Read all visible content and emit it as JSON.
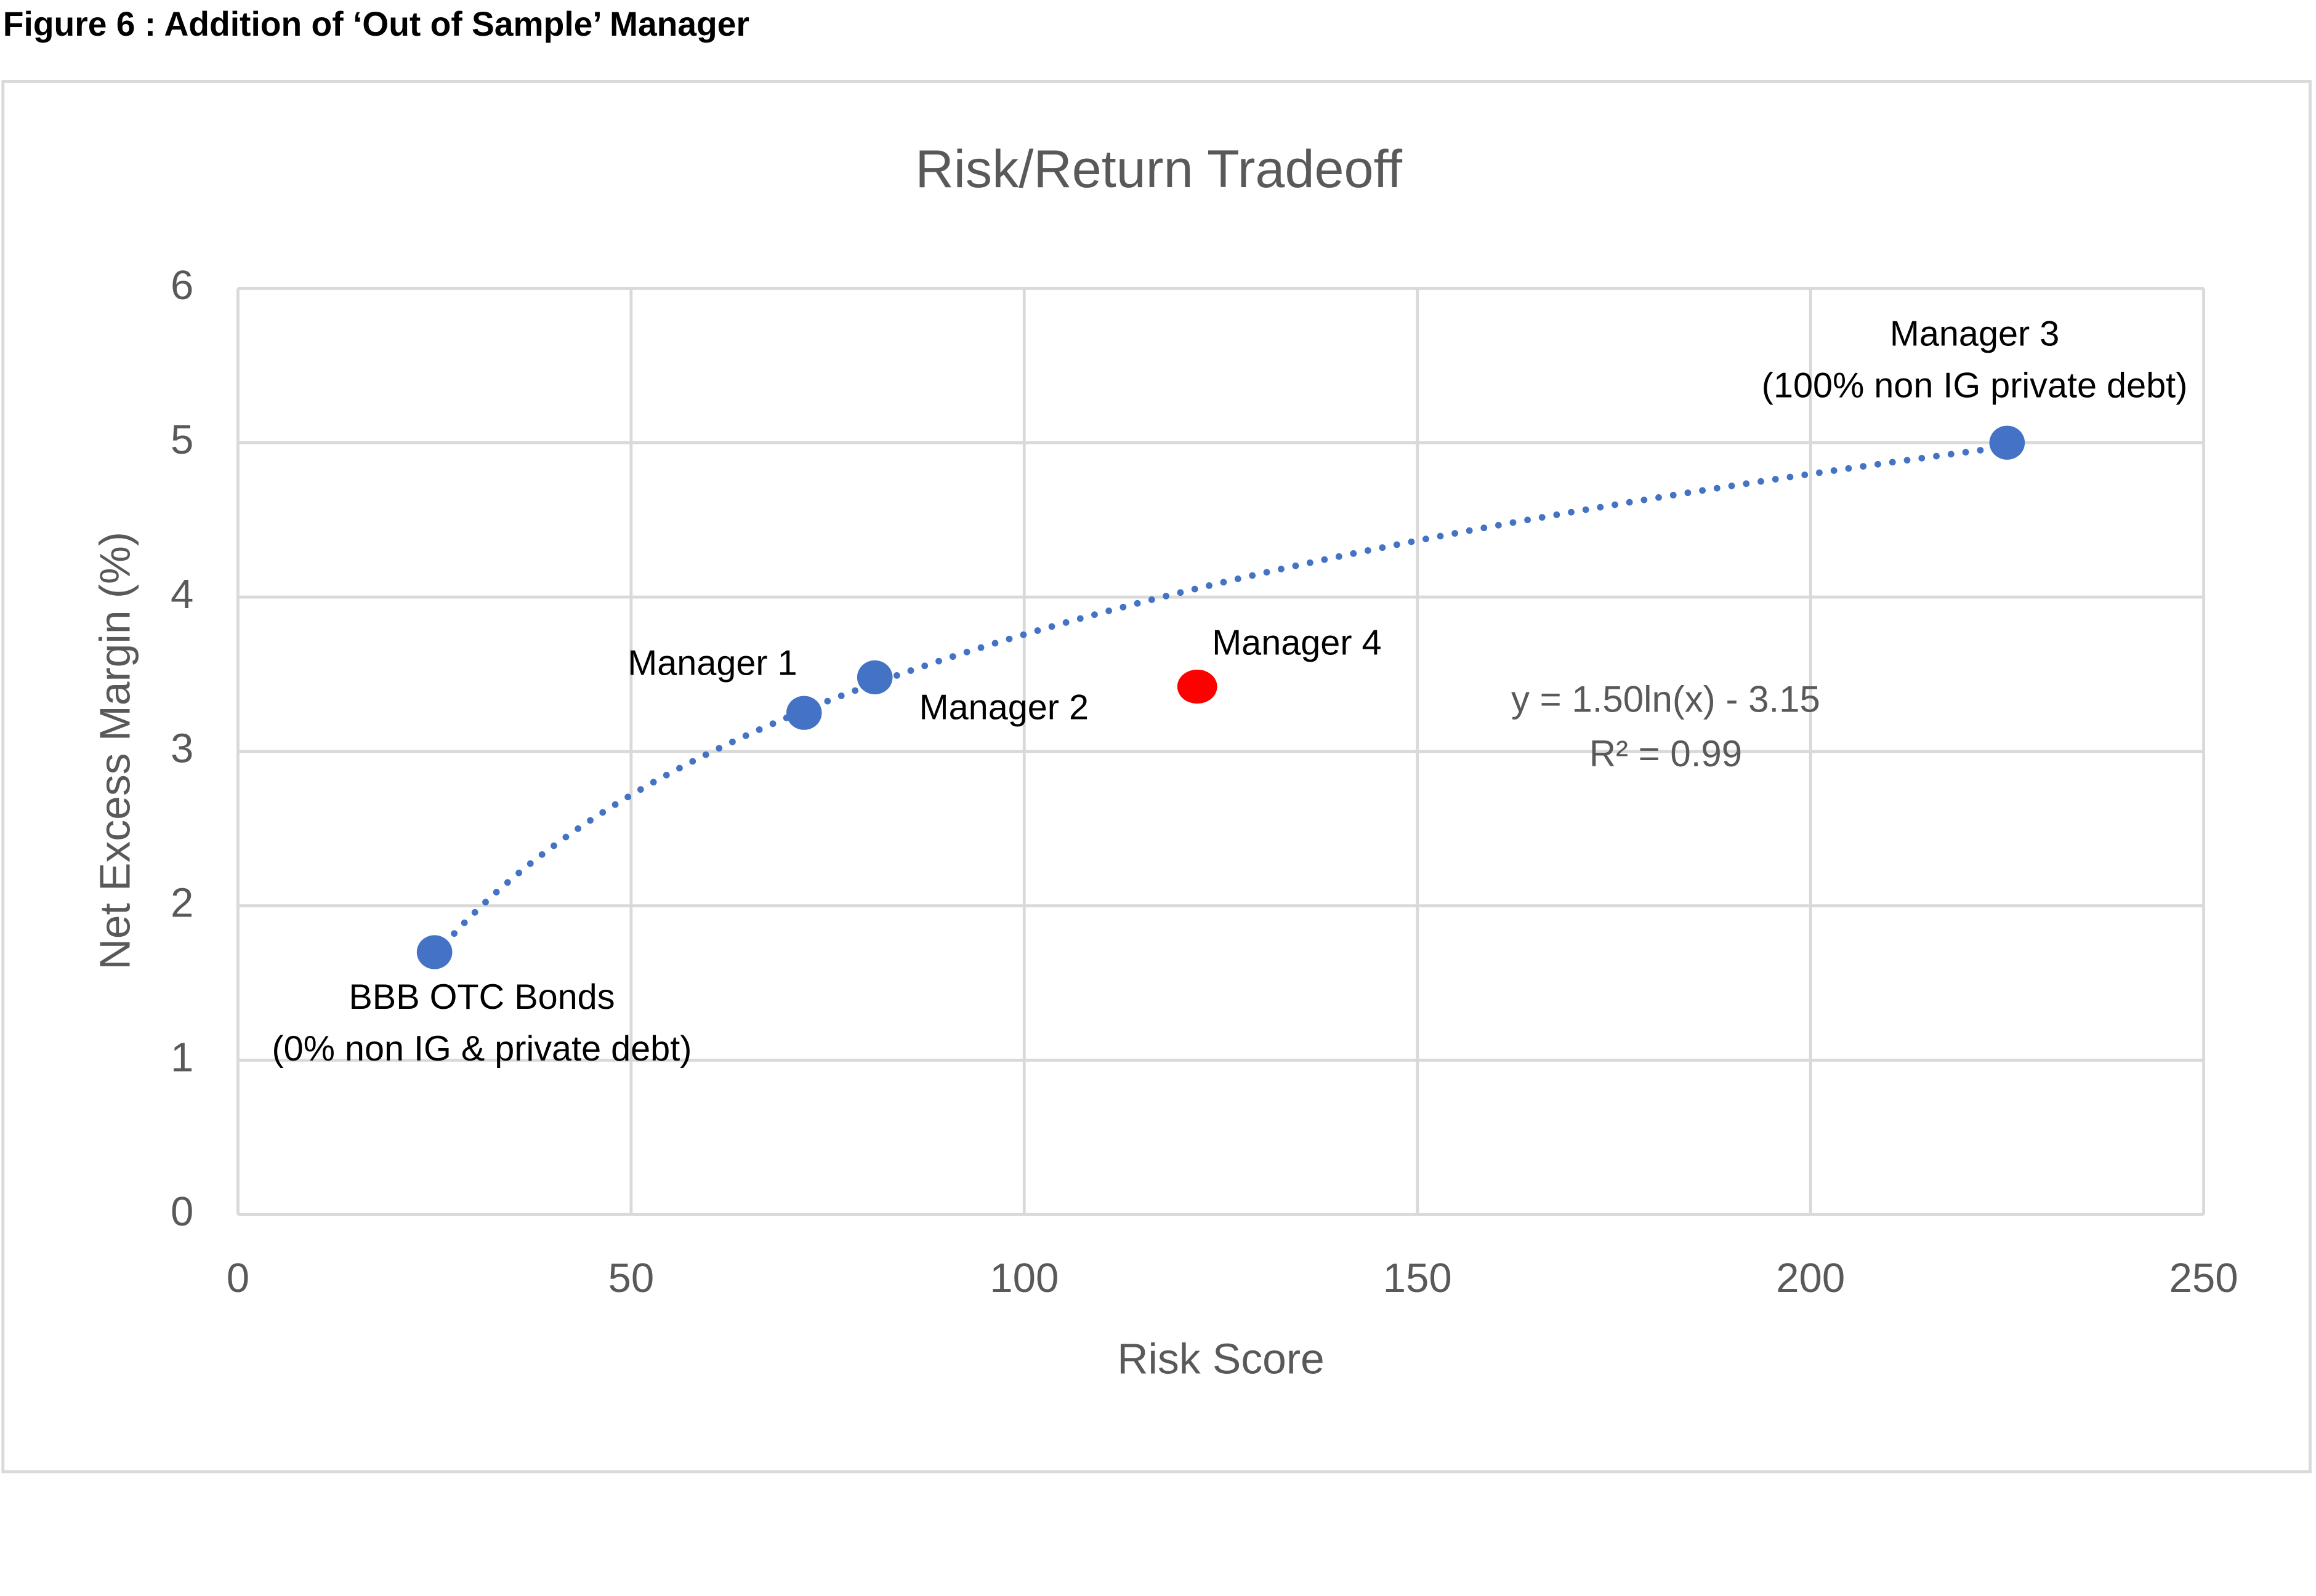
{
  "figure_title": "Figure 6 : Addition of ‘Out of Sample’ Manager",
  "chart_data": {
    "type": "scatter",
    "title": "Risk/Return Tradeoff",
    "x_label": "Risk Score",
    "y_label": "Net Excess Margin (%)",
    "xlim": [
      0,
      250
    ],
    "xticks": [
      0,
      50,
      100,
      150,
      200,
      250
    ],
    "ylim": [
      0,
      6
    ],
    "yticks": [
      0,
      1,
      2,
      3,
      4,
      5,
      6
    ],
    "grid": true,
    "points": [
      {
        "label": [
          "BBB OTC Bonds",
          "(0% non IG & private debt)"
        ],
        "x": 25,
        "y": 1.7,
        "color": "#4472c4"
      },
      {
        "label": [
          "Manager 1"
        ],
        "x": 72,
        "y": 3.25,
        "color": "#4472c4"
      },
      {
        "label": [
          "Manager 2"
        ],
        "x": 81,
        "y": 3.48,
        "color": "#4472c4"
      },
      {
        "label": [
          "Manager 4"
        ],
        "x": 122,
        "y": 3.42,
        "color": "#ff0000"
      },
      {
        "label": [
          "Manager 3",
          "(100% non IG private debt)"
        ],
        "x": 225,
        "y": 5.0,
        "color": "#4472c4"
      }
    ],
    "trendline": {
      "type": "log",
      "coef": 1.5,
      "intercept": -3.15,
      "color": "#4472c4",
      "equation": "y = 1.50ln(x) - 3.15",
      "r2_label": "R² = 0.99"
    }
  }
}
